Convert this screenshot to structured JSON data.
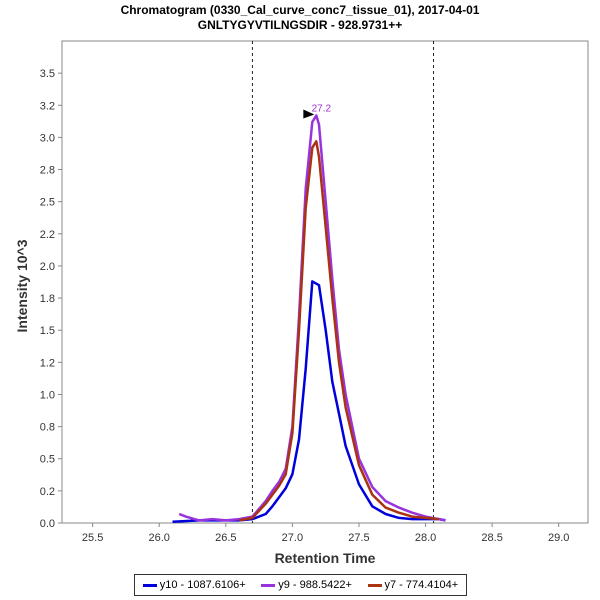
{
  "chart_data": {
    "type": "line",
    "title": "Chromatogram (0330_Cal_curve_conc7_tissue_01), 2017-04-01",
    "subtitle": "GNLTYGYVTILNGSDIR - 928.9731++",
    "xlabel": "Retention Time",
    "ylabel": "Intensity 10^3",
    "xlim": [
      25.27,
      29.22
    ],
    "ylim": [
      0,
      3.75
    ],
    "xticks": [
      "25.5",
      "26.0",
      "26.5",
      "27.0",
      "27.5",
      "28.0",
      "28.5",
      "29.0"
    ],
    "yticks": [
      "0.0",
      "0.2",
      "0.5",
      "0.8",
      "1.0",
      "1.2",
      "1.5",
      "1.8",
      "2.0",
      "2.2",
      "2.5",
      "2.8",
      "3.0",
      "3.2",
      "3.5"
    ],
    "ytick_values": [
      0.0,
      0.25,
      0.5,
      0.75,
      1.0,
      1.25,
      1.5,
      1.75,
      2.0,
      2.25,
      2.5,
      2.75,
      3.0,
      3.25,
      3.5
    ],
    "grid": false,
    "legend_position": "bottom",
    "vlines": [
      26.7,
      28.06
    ],
    "peak_annotation": {
      "label": "27.2",
      "x": 27.18,
      "y": 3.17,
      "color": "#9933cc"
    },
    "series": [
      {
        "name": "y10 - 1087.6106+",
        "color": "#0000dd",
        "x": [
          26.1,
          26.3,
          26.4,
          26.5,
          26.6,
          26.7,
          26.8,
          26.85,
          26.9,
          26.95,
          27.0,
          27.05,
          27.1,
          27.15,
          27.2,
          27.25,
          27.3,
          27.35,
          27.4,
          27.5,
          27.6,
          27.7,
          27.8,
          27.9,
          28.0,
          28.1,
          28.15
        ],
        "y": [
          0.01,
          0.02,
          0.02,
          0.02,
          0.02,
          0.03,
          0.07,
          0.13,
          0.2,
          0.27,
          0.38,
          0.65,
          1.2,
          1.88,
          1.85,
          1.5,
          1.1,
          0.85,
          0.6,
          0.3,
          0.13,
          0.07,
          0.04,
          0.03,
          0.03,
          0.03,
          0.02
        ]
      },
      {
        "name": "y9 - 988.5422+",
        "color": "#9933dd",
        "x": [
          26.15,
          26.2,
          26.3,
          26.4,
          26.5,
          26.6,
          26.7,
          26.8,
          26.85,
          26.9,
          26.95,
          27.0,
          27.05,
          27.1,
          27.15,
          27.18,
          27.2,
          27.25,
          27.3,
          27.35,
          27.4,
          27.5,
          27.6,
          27.7,
          27.8,
          27.9,
          28.0,
          28.1,
          28.15
        ],
        "y": [
          0.07,
          0.05,
          0.02,
          0.03,
          0.02,
          0.03,
          0.05,
          0.17,
          0.25,
          0.32,
          0.42,
          0.75,
          1.6,
          2.6,
          3.12,
          3.17,
          3.1,
          2.5,
          1.9,
          1.35,
          1.0,
          0.5,
          0.28,
          0.17,
          0.12,
          0.08,
          0.05,
          0.03,
          0.02
        ]
      },
      {
        "name": "y7 - 774.4104+",
        "color": "#aa3311",
        "x": [
          26.6,
          26.7,
          26.8,
          26.85,
          26.9,
          26.95,
          27.0,
          27.05,
          27.1,
          27.15,
          27.18,
          27.2,
          27.25,
          27.3,
          27.35,
          27.4,
          27.5,
          27.6,
          27.7,
          27.8,
          27.9,
          28.0,
          28.1
        ],
        "y": [
          0.02,
          0.04,
          0.15,
          0.22,
          0.29,
          0.38,
          0.7,
          1.5,
          2.45,
          2.92,
          2.97,
          2.85,
          2.3,
          1.75,
          1.25,
          0.9,
          0.45,
          0.22,
          0.12,
          0.08,
          0.05,
          0.04,
          0.03
        ]
      }
    ]
  }
}
